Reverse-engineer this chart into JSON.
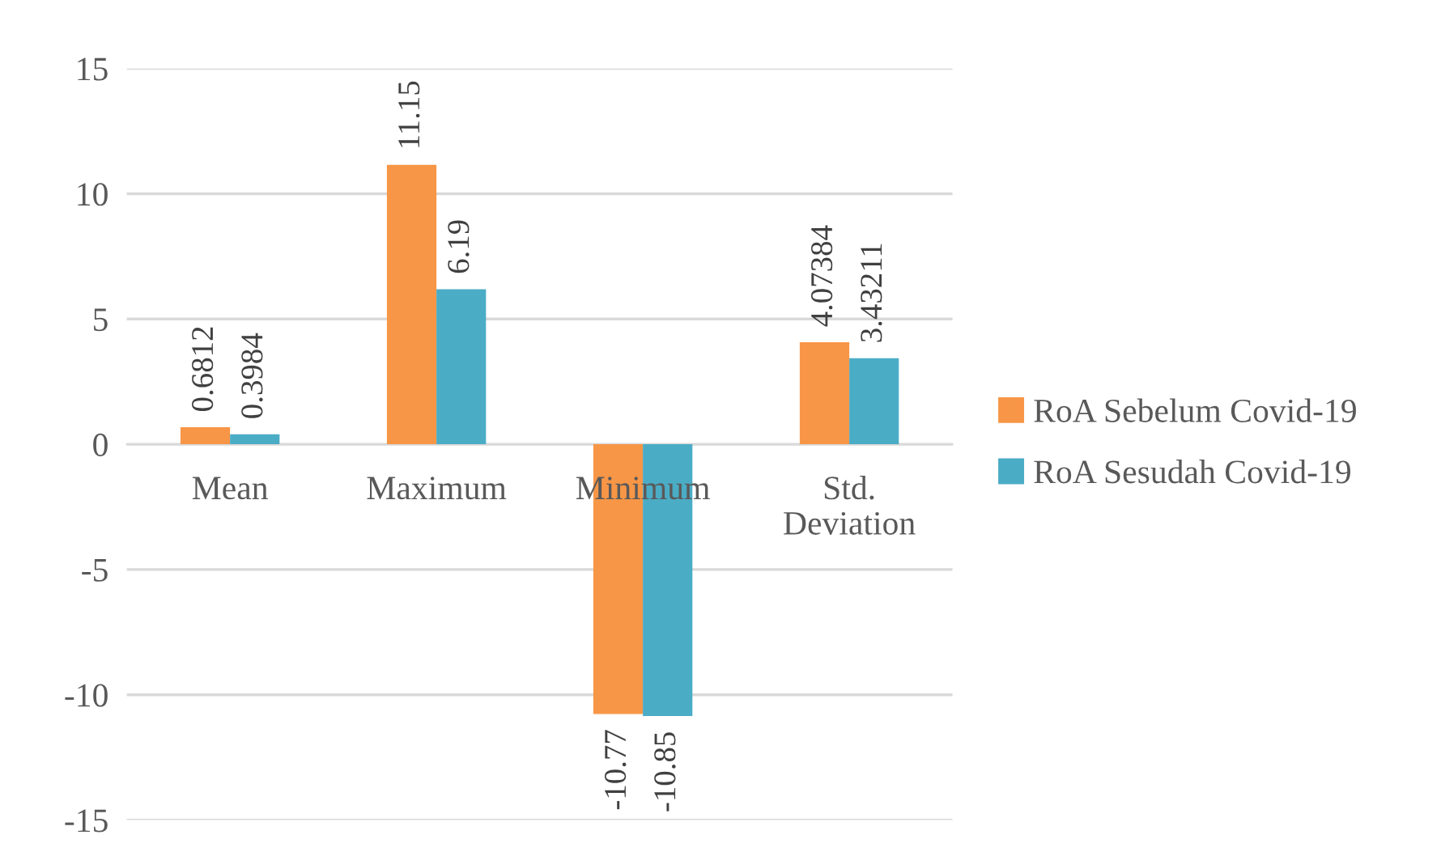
{
  "chart_data": {
    "type": "bar",
    "categories": [
      "Mean",
      "Maximum",
      "Minimum",
      "Std.\nDeviation"
    ],
    "series": [
      {
        "name": "RoA Sebelum Covid-19",
        "color": "#f79646",
        "values": [
          0.6812,
          11.15,
          -10.77,
          4.07384
        ]
      },
      {
        "name": "RoA Sesudah Covid-19",
        "color": "#4bacc6",
        "values": [
          0.3984,
          6.19,
          -10.85,
          3.43211
        ]
      }
    ],
    "ylim": [
      -15,
      15
    ],
    "yticks": [
      15,
      10,
      5,
      0,
      -5,
      -10,
      -15
    ],
    "grid": "y",
    "legend": "right",
    "data_labels": true
  }
}
